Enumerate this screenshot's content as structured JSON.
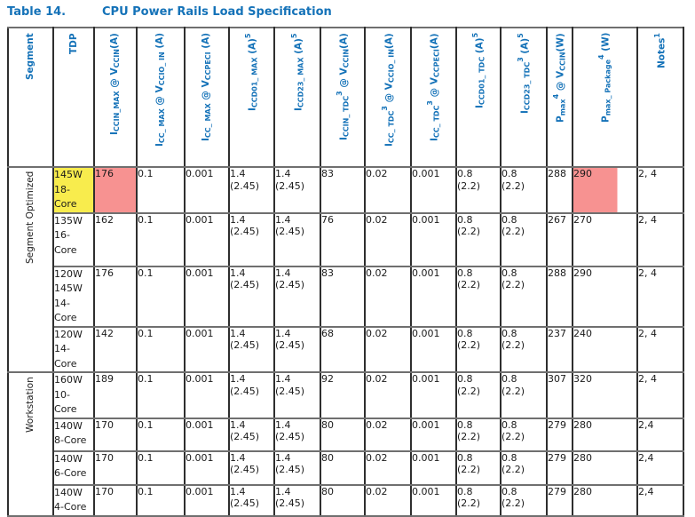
{
  "title": {
    "label": "Table 14.",
    "text": "CPU Power Rails Load Specification"
  },
  "colors": {
    "header_blue": "#1472b8",
    "highlight_yellow": "#f8ec4d",
    "highlight_pink": "#f79291",
    "border_dark": "#2e2e2e",
    "border_gray": "#6f6f6f"
  },
  "table": {
    "columns": [
      {
        "id": "segment",
        "segments": [
          {
            "t": "Segment"
          }
        ]
      },
      {
        "id": "tdp",
        "segments": [
          {
            "t": "TDP"
          }
        ]
      },
      {
        "id": "iccin-max",
        "segments": [
          {
            "t": "I"
          },
          {
            "t": "CCIN_MAX",
            "s": "sub"
          },
          {
            "t": " @ V"
          },
          {
            "t": "CCIN",
            "s": "sub"
          },
          {
            "t": "(A)"
          }
        ]
      },
      {
        "id": "icc-max-vccio",
        "segments": [
          {
            "t": "I"
          },
          {
            "t": "CC_ MAX",
            "s": "sub"
          },
          {
            "t": " @ V"
          },
          {
            "t": "CCIO_ IN",
            "s": "sub"
          },
          {
            "t": " (A)"
          }
        ]
      },
      {
        "id": "icc-max-vccpeci",
        "segments": [
          {
            "t": "I"
          },
          {
            "t": "CC_ MAX",
            "s": "sub"
          },
          {
            "t": " @ V"
          },
          {
            "t": "CCPECI",
            "s": "sub"
          },
          {
            "t": " (A)"
          }
        ]
      },
      {
        "id": "iccd01-max",
        "segments": [
          {
            "t": "I"
          },
          {
            "t": "CCD01_ MAX",
            "s": "sub"
          },
          {
            "t": " (A)"
          },
          {
            "t": "5",
            "s": "sup"
          }
        ]
      },
      {
        "id": "iccd23-max",
        "segments": [
          {
            "t": "I"
          },
          {
            "t": "CCD23_ MAX",
            "s": "sub"
          },
          {
            "t": " (A)"
          },
          {
            "t": "5",
            "s": "sup"
          }
        ]
      },
      {
        "id": "iccin-tdc",
        "segments": [
          {
            "t": "I"
          },
          {
            "t": "CCIN_ TDC",
            "s": "sub"
          },
          {
            "t": "3",
            "s": "sup"
          },
          {
            "t": " @ V"
          },
          {
            "t": "CCIN",
            "s": "sub"
          },
          {
            "t": "(A)"
          }
        ]
      },
      {
        "id": "icc-tdc-vccio",
        "segments": [
          {
            "t": "I"
          },
          {
            "t": "CC_ TDC",
            "s": "sub"
          },
          {
            "t": "3",
            "s": "sup"
          },
          {
            "t": " @ V"
          },
          {
            "t": "CCIO_ IN",
            "s": "sub"
          },
          {
            "t": "(A)"
          }
        ]
      },
      {
        "id": "icc-tdc-vccpeci",
        "segments": [
          {
            "t": "I"
          },
          {
            "t": "CC_ TDC",
            "s": "sub"
          },
          {
            "t": "3",
            "s": "sup"
          },
          {
            "t": " @ V"
          },
          {
            "t": "CCPECI",
            "s": "sub"
          },
          {
            "t": "(A)"
          }
        ]
      },
      {
        "id": "iccd01-tdc",
        "segments": [
          {
            "t": "I"
          },
          {
            "t": "CCD01_ TDC",
            "s": "sub"
          },
          {
            "t": " (A)"
          },
          {
            "t": "5",
            "s": "sup"
          }
        ]
      },
      {
        "id": "iccd23-tdc",
        "segments": [
          {
            "t": "I"
          },
          {
            "t": "CCD23_ TDC",
            "s": "sub"
          },
          {
            "t": "3",
            "s": "sup"
          },
          {
            "t": " (A)"
          },
          {
            "t": "5",
            "s": "sup"
          }
        ]
      },
      {
        "id": "pmax",
        "segments": [
          {
            "t": "P"
          },
          {
            "t": "max",
            "s": "sub"
          },
          {
            "t": "4",
            "s": "sup"
          },
          {
            "t": " @ V"
          },
          {
            "t": "CCIN",
            "s": "sub"
          },
          {
            "t": "(W)"
          }
        ]
      },
      {
        "id": "pmax-package",
        "segments": [
          {
            "t": "P"
          },
          {
            "t": "max_ Package",
            "s": "sub"
          },
          {
            "t": "4",
            "s": "sup"
          },
          {
            "t": " (W)"
          }
        ]
      },
      {
        "id": "notes",
        "segments": [
          {
            "t": "Notes"
          },
          {
            "t": "1",
            "s": "sup"
          }
        ]
      }
    ],
    "groups": [
      {
        "label": "Segment Optimized",
        "rows": [
          {
            "tdp": "145W\n18-\nCore",
            "values": [
              "176",
              "0.1",
              "0.001",
              "1.4\n(2.45)",
              "1.4\n(2.45)",
              "83",
              "0.02",
              "0.001",
              "0.8\n(2.2)",
              "0.8\n(2.2)",
              "288",
              "290",
              "2, 4"
            ]
          },
          {
            "tdp": "135W\n16-\nCore",
            "values": [
              "162",
              "0.1",
              "0.001",
              "1.4\n(2.45)",
              "1.4\n(2.45)",
              "76",
              "0.02",
              "0.001",
              "0.8\n(2.2)",
              "0.8\n(2.2)",
              "267",
              "270",
              "2, 4"
            ]
          },
          {
            "tdp": "120W\n145W\n14-\nCore",
            "values": [
              "176",
              "0.1",
              "0.001",
              "1.4\n(2.45)",
              "1.4\n(2.45)",
              "83",
              "0.02",
              "0.001",
              "0.8\n(2.2)",
              "0.8\n(2.2)",
              "288",
              "290",
              "2, 4"
            ]
          },
          {
            "tdp": "120W\n14-\nCore",
            "values": [
              "142",
              "0.1",
              "0.001",
              "1.4\n(2.45)",
              "1.4\n(2.45)",
              "68",
              "0.02",
              "0.001",
              "0.8\n(2.2)",
              "0.8\n(2.2)",
              "237",
              "240",
              "2, 4"
            ]
          }
        ]
      },
      {
        "label": "Workstation",
        "rows": [
          {
            "tdp": "160W\n10-\nCore",
            "values": [
              "189",
              "0.1",
              "0.001",
              "1.4\n(2.45)",
              "1.4\n(2.45)",
              "92",
              "0.02",
              "0.001",
              "0.8\n(2.2)",
              "0.8\n(2.2)",
              "307",
              "320",
              "2, 4"
            ]
          },
          {
            "tdp": "140W\n8-Core",
            "values": [
              "170",
              "0.1",
              "0.001",
              "1.4\n(2.45)",
              "1.4\n(2.45)",
              "80",
              "0.02",
              "0.001",
              "0.8\n(2.2)",
              "0.8\n(2.2)",
              "279",
              "280",
              "2,4"
            ]
          },
          {
            "tdp": "140W\n6-Core",
            "values": [
              "170",
              "0.1",
              "0.001",
              "1.4\n(2.45)",
              "1.4\n(2.45)",
              "80",
              "0.02",
              "0.001",
              "0.8\n(2.2)",
              "0.8\n(2.2)",
              "279",
              "280",
              "2,4"
            ]
          },
          {
            "tdp": "140W\n4-Core",
            "values": [
              "170",
              "0.1",
              "0.001",
              "1.4\n(2.45)",
              "1.4\n(2.45)",
              "80",
              "0.02",
              "0.001",
              "0.8\n(2.2)",
              "0.8\n(2.2)",
              "279",
              "280",
              "2,4"
            ]
          }
        ]
      }
    ],
    "highlights": [
      {
        "group": 0,
        "row": 0,
        "col": "tdp",
        "color": "#f8ec4d"
      },
      {
        "group": 0,
        "row": 0,
        "col": 0,
        "color": "#f79291"
      },
      {
        "group": 0,
        "row": 0,
        "col": 11,
        "color": "#f79291",
        "partial": true
      }
    ]
  }
}
